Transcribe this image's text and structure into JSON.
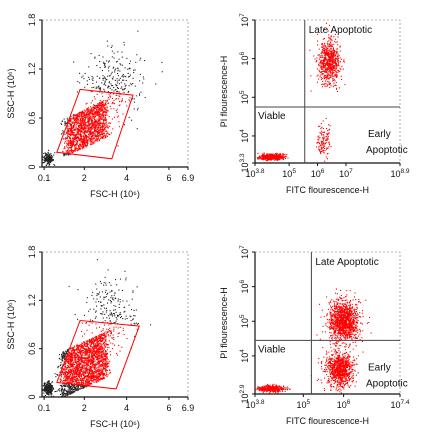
{
  "colors": {
    "gated": "#ff0000",
    "ungated": "#222222",
    "axis": "#111111",
    "gate_line": "#444444"
  },
  "chart_data": [
    {
      "type": "scatter",
      "panel": "top-left",
      "xlabel": "FSC-H (10⁶)",
      "ylabel": "SSC-H (10⁶)",
      "x_ticks": [
        "0.1",
        "2",
        "4",
        "6",
        "6.9"
      ],
      "y_ticks": [
        "0",
        "0.6",
        "1.2",
        "1.8"
      ],
      "xlim": [
        0,
        6.9
      ],
      "ylim": [
        0,
        1.8
      ],
      "gate": [
        [
          0.7,
          0.18
        ],
        [
          1.8,
          0.95
        ],
        [
          4.3,
          0.88
        ],
        [
          3.3,
          0.1
        ]
      ],
      "series": [
        {
          "values_desc": "gated cells",
          "center": [
            2.1,
            0.48
          ],
          "spread": [
            0.7,
            0.18
          ],
          "count": 1500
        },
        {
          "values_desc": "debris",
          "center": [
            0.3,
            0.1
          ],
          "spread": [
            0.2,
            0.06
          ],
          "count": 200
        },
        {
          "values_desc": "scattered events",
          "center": [
            3.4,
            1.0
          ],
          "spread": [
            1.4,
            0.4
          ],
          "count": 300
        }
      ]
    },
    {
      "type": "scatter",
      "panel": "top-right",
      "xlabel": "FITC flourescence-H",
      "ylabel": "PI flourescence-H",
      "x_ticks": [
        "10^3.8",
        "10^5",
        "10^6",
        "10^7",
        "10^8.9"
      ],
      "y_ticks": [
        "10^3.3",
        "10^4",
        "10^5",
        "10^6",
        "10^7"
      ],
      "xlim": [
        3.8,
        8.9
      ],
      "ylim": [
        3.3,
        7.0
      ],
      "quadrant_divider": {
        "x": 5.55,
        "y": 4.75
      },
      "quadrant_labels": [
        "Late Apoptotic",
        "Viable",
        "Early",
        "Apoptotic"
      ],
      "series": [
        {
          "name": "Late Apoptotic",
          "center": [
            6.4,
            5.9
          ],
          "spread": [
            0.35,
            0.5
          ],
          "count": 700
        },
        {
          "name": "Viable",
          "center": [
            4.4,
            3.45
          ],
          "spread": [
            0.4,
            0.07
          ],
          "count": 500
        },
        {
          "name": "Early Apoptotic",
          "center": [
            6.2,
            3.9
          ],
          "spread": [
            0.25,
            0.4
          ],
          "count": 120
        }
      ]
    },
    {
      "type": "scatter",
      "panel": "bottom-left",
      "xlabel": "FSC-H (10⁶)",
      "ylabel": "SSC-H (10⁶)",
      "x_ticks": [
        "0.1",
        "2",
        "4",
        "6",
        "6.9"
      ],
      "y_ticks": [
        "0",
        "0.6",
        "1.2",
        "1.8"
      ],
      "xlim": [
        0,
        6.9
      ],
      "ylim": [
        0,
        1.8
      ],
      "gate": [
        [
          0.7,
          0.18
        ],
        [
          1.8,
          0.95
        ],
        [
          4.6,
          0.88
        ],
        [
          3.5,
          0.1
        ]
      ],
      "series": [
        {
          "values_desc": "gated cells",
          "center": [
            2.0,
            0.4
          ],
          "spread": [
            0.8,
            0.22
          ],
          "count": 2200
        },
        {
          "values_desc": "debris",
          "center": [
            0.3,
            0.1
          ],
          "spread": [
            0.2,
            0.07
          ],
          "count": 300
        },
        {
          "values_desc": "scattered events",
          "center": [
            3.2,
            1.0
          ],
          "spread": [
            1.3,
            0.4
          ],
          "count": 250
        }
      ]
    },
    {
      "type": "scatter",
      "panel": "bottom-right",
      "xlabel": "FITC flourescence-H",
      "ylabel": "PI flourescence-H",
      "x_ticks": [
        "10^3.8",
        "10^5",
        "10^6",
        "10^7.4"
      ],
      "y_ticks": [
        "10^2.9",
        "10^4",
        "10^5",
        "10^6",
        "10^7"
      ],
      "xlim": [
        3.8,
        7.4
      ],
      "ylim": [
        2.9,
        7.0
      ],
      "quadrant_divider": {
        "x": 5.2,
        "y": 4.45
      },
      "quadrant_labels": [
        "Late Apoptotic",
        "Viable",
        "Early",
        "Apoptotic"
      ],
      "series": [
        {
          "name": "Late Apoptotic",
          "center": [
            6.0,
            5.0
          ],
          "spread": [
            0.35,
            0.55
          ],
          "count": 1200
        },
        {
          "name": "Viable",
          "center": [
            4.2,
            3.05
          ],
          "spread": [
            0.3,
            0.08
          ],
          "count": 400
        },
        {
          "name": "Early Apoptotic",
          "center": [
            5.9,
            3.6
          ],
          "spread": [
            0.3,
            0.45
          ],
          "count": 900
        }
      ]
    }
  ]
}
